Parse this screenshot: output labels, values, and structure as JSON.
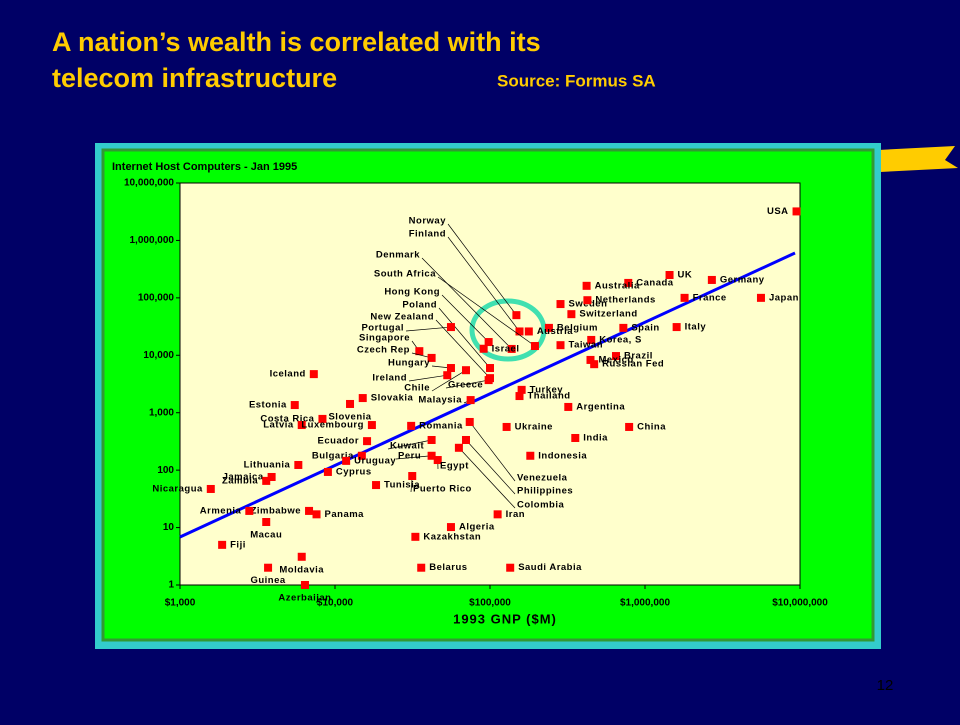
{
  "slide": {
    "title": [
      "A nation’s wealth is correlated with its",
      "telecom infrastructure"
    ],
    "source": "Source: Formus SA",
    "page": "12"
  },
  "chart_data": {
    "type": "scatter",
    "title": "Internet Host Computers - Jan 1995",
    "x_label": "1993 GNP ($M)",
    "xlog": true,
    "ylog": true,
    "color": "#ff0000",
    "xlim": [
      1000,
      10000000
    ],
    "ylim": [
      1,
      10000000
    ],
    "xticks": [
      {
        "value": 1000,
        "label": "$1,000"
      },
      {
        "value": 10000,
        "label": "$10,000"
      },
      {
        "value": 100000,
        "label": "$100,000"
      },
      {
        "value": 1000000,
        "label": "$1,000,000"
      },
      {
        "value": 10000000,
        "label": "$10,000,000"
      }
    ],
    "yticks": [
      1,
      10,
      100,
      {
        "value": 1000,
        "label": "1,000"
      },
      {
        "value": 10000,
        "label": "10,000"
      },
      {
        "value": 100000,
        "label": "100,000"
      },
      {
        "value": 1000000,
        "label": "1,000,000"
      },
      {
        "value": 10000000,
        "label": "10,000,000"
      }
    ],
    "labels": [
      "USA",
      "UK",
      "Germany",
      "Japan",
      "France",
      "Italy",
      "Canada",
      "Australia",
      "Sweden",
      "Netherlands",
      "Switzerland",
      "Belgium",
      "Spain",
      "Austria",
      "Korea, S",
      "Taiwan",
      "Brazil",
      "Russian Fed",
      "Mexico",
      "Norway",
      "Finland",
      "Denmark",
      "South Africa",
      "Hong Kong",
      "Israel",
      "Poland",
      "New Zealand",
      "Portugal",
      "Singapore",
      "Czech Rep",
      "Hungary",
      "Ireland",
      "Chile",
      "Greece",
      "Turkey",
      "Thailand",
      "Argentina",
      "Malaysia",
      "Iceland",
      "Slovenia",
      "Slovakia",
      "Estonia",
      "Costa Rica",
      "Latvia",
      "Romania",
      "Luxembourg",
      "Ecuador",
      "Bulgaria",
      "Uruguay",
      "Kuwait",
      "Peru",
      "Egypt",
      "Ukraine",
      "India",
      "China",
      "Indonesia",
      "Venezuela",
      "Philippines",
      "Colombia",
      "Lithuania",
      "Jamaica",
      "Zambia",
      "Nicaragua",
      "Cyprus",
      "Tunisia",
      "Puerto Rico",
      "Zimbabwe",
      "Panama",
      "Armenia",
      "Macau",
      "Iran",
      "Algeria",
      "Fiji",
      "Moldavia",
      "Kazakhstan",
      "Guinea",
      "Azerbaijan",
      "Belarus",
      "Saudi Arabia"
    ],
    "x": [
      9500000,
      1440000,
      2700000,
      5600000,
      1800000,
      1600000,
      780000,
      420000,
      285000,
      425000,
      335000,
      240000,
      725000,
      178000,
      450000,
      285000,
      650000,
      470000,
      445000,
      148000,
      155000,
      138000,
      195000,
      98000,
      91000,
      100000,
      100000,
      56000,
      35000,
      42000,
      56000,
      53000,
      70000,
      98000,
      160000,
      155000,
      320000,
      75000,
      7300,
      12500,
      15100,
      5500,
      8300,
      6100,
      31000,
      17300,
      16100,
      14900,
      11800,
      42000,
      42000,
      46000,
      128000,
      355000,
      790000,
      182000,
      74000,
      70000,
      63000,
      5800,
      3900,
      3600,
      1580,
      9000,
      18400,
      31500,
      6800,
      7600,
      2800,
      3600,
      112000,
      56000,
      1870,
      6100,
      33000,
      3700,
      6400,
      36000,
      135000
    ],
    "values": [
      3200000,
      250000,
      205000,
      100000,
      100000,
      31000,
      182000,
      162000,
      78000,
      91000,
      52000,
      30000,
      30000,
      26000,
      18500,
      15000,
      9700,
      7000,
      8300,
      50000,
      26000,
      12900,
      14500,
      17000,
      13000,
      6000,
      4000,
      31000,
      11800,
      9000,
      6000,
      4500,
      5500,
      3700,
      2500,
      1950,
      1260,
      1660,
      4700,
      1420,
      1800,
      1360,
      780,
      610,
      590,
      610,
      320,
      178,
      145,
      335,
      178,
      150,
      565,
      363,
      565,
      178,
      690,
      335,
      245,
      123,
      76,
      65,
      47,
      93,
      55,
      79,
      19.5,
      17,
      19.5,
      12.5,
      17,
      10.2,
      5,
      3.1,
      6.9,
      2,
      1,
      2,
      2
    ]
  }
}
